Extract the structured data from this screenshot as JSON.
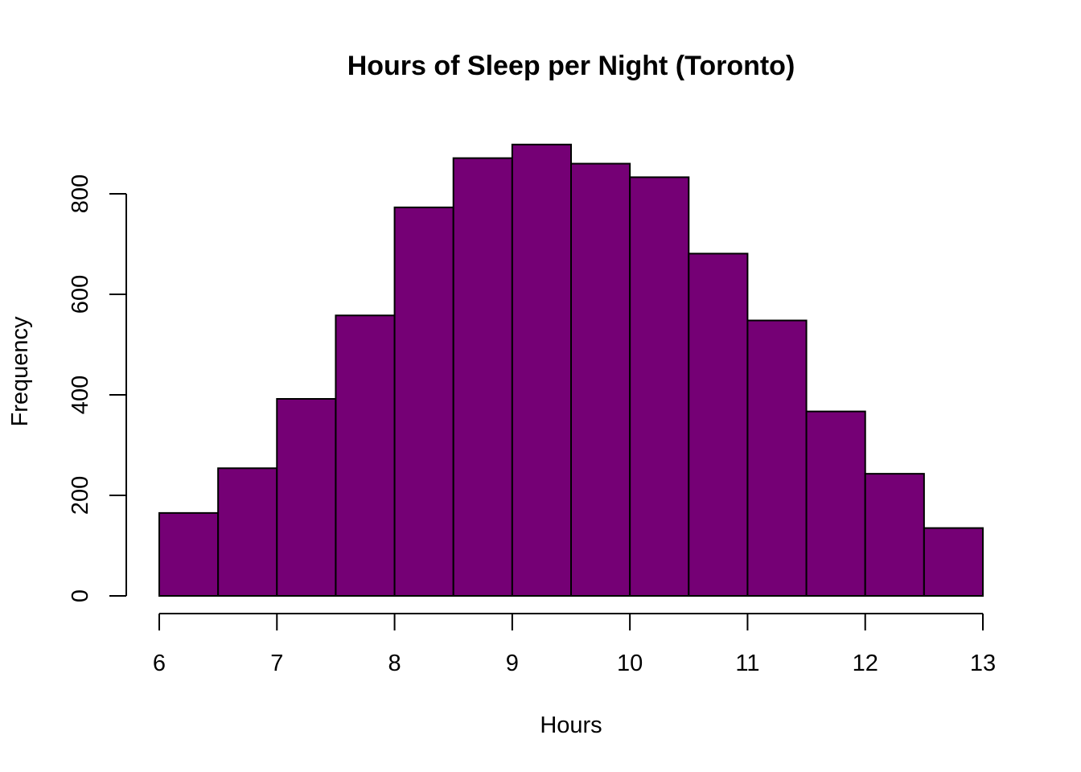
{
  "chart_data": {
    "type": "bar",
    "subtype": "histogram",
    "title": "Hours of Sleep per Night (Toronto)",
    "xlabel": "Hours",
    "ylabel": "Frequency",
    "bin_edges": [
      6,
      6.5,
      7,
      7.5,
      8,
      8.5,
      9,
      9.5,
      10,
      10.5,
      11,
      11.5,
      12,
      12.5,
      13
    ],
    "values": [
      165,
      254,
      392,
      558,
      773,
      871,
      898,
      860,
      833,
      681,
      548,
      367,
      243,
      135
    ],
    "xlim": [
      6,
      13
    ],
    "ylim": [
      0,
      900
    ],
    "x_ticks": [
      6,
      7,
      8,
      9,
      10,
      11,
      12,
      13
    ],
    "y_ticks": [
      0,
      200,
      400,
      600,
      800
    ],
    "bar_color": "#750075",
    "edge_color": "#000000",
    "grid": false,
    "legend": "none"
  }
}
